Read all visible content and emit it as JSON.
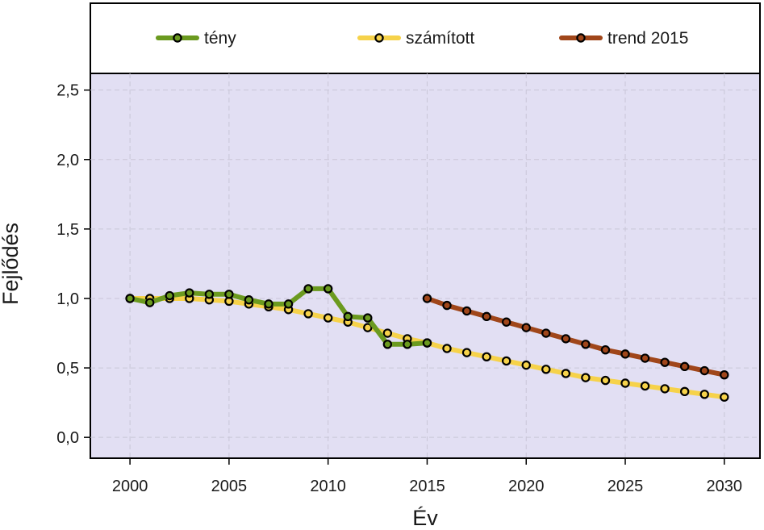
{
  "chart_data": {
    "type": "line",
    "xlabel": "Év",
    "ylabel": "Fejlődés",
    "xlim": [
      1998,
      2031.8
    ],
    "ylim": [
      -0.15,
      2.62
    ],
    "x_ticks": [
      2000,
      2005,
      2010,
      2015,
      2020,
      2025,
      2030
    ],
    "x_tick_labels": [
      "2000",
      "2005",
      "2010",
      "2015",
      "2020",
      "2025",
      "2030"
    ],
    "y_ticks": [
      0,
      0.5,
      1,
      1.5,
      2,
      2.5
    ],
    "y_tick_labels": [
      "0,0",
      "0,5",
      "1,0",
      "1,5",
      "2,0",
      "2,5"
    ],
    "grid": true,
    "legend_position": "top (above plot)",
    "background_color": "#e2dff3",
    "series": [
      {
        "name": "számított",
        "color": "#f6d24a",
        "x": [
          2000,
          2001,
          2002,
          2003,
          2004,
          2005,
          2006,
          2007,
          2008,
          2009,
          2010,
          2011,
          2012,
          2013,
          2014,
          2015,
          2016,
          2017,
          2018,
          2019,
          2020,
          2021,
          2022,
          2023,
          2024,
          2025,
          2026,
          2027,
          2028,
          2029,
          2030
        ],
        "y": [
          1.0,
          1.0,
          1.0,
          1.0,
          0.99,
          0.98,
          0.96,
          0.94,
          0.92,
          0.89,
          0.86,
          0.83,
          0.79,
          0.75,
          0.71,
          0.68,
          0.64,
          0.61,
          0.58,
          0.55,
          0.52,
          0.49,
          0.46,
          0.43,
          0.41,
          0.39,
          0.37,
          0.35,
          0.33,
          0.31,
          0.29
        ]
      },
      {
        "name": "tény",
        "color": "#6b9a1f",
        "x": [
          2000,
          2001,
          2002,
          2003,
          2004,
          2005,
          2006,
          2007,
          2008,
          2009,
          2010,
          2011,
          2012,
          2013,
          2014,
          2015
        ],
        "y": [
          1.0,
          0.97,
          1.02,
          1.04,
          1.03,
          1.03,
          0.99,
          0.96,
          0.96,
          1.07,
          1.07,
          0.87,
          0.86,
          0.67,
          0.67,
          0.68
        ]
      },
      {
        "name": "trend 2015",
        "color": "#a0461a",
        "x": [
          2015,
          2016,
          2017,
          2018,
          2019,
          2020,
          2021,
          2022,
          2023,
          2024,
          2025,
          2026,
          2027,
          2028,
          2029,
          2030
        ],
        "y": [
          1.0,
          0.95,
          0.91,
          0.87,
          0.83,
          0.79,
          0.75,
          0.71,
          0.67,
          0.63,
          0.6,
          0.57,
          0.54,
          0.51,
          0.48,
          0.45
        ]
      }
    ],
    "legend_order": [
      "tény",
      "számított",
      "trend 2015"
    ]
  }
}
